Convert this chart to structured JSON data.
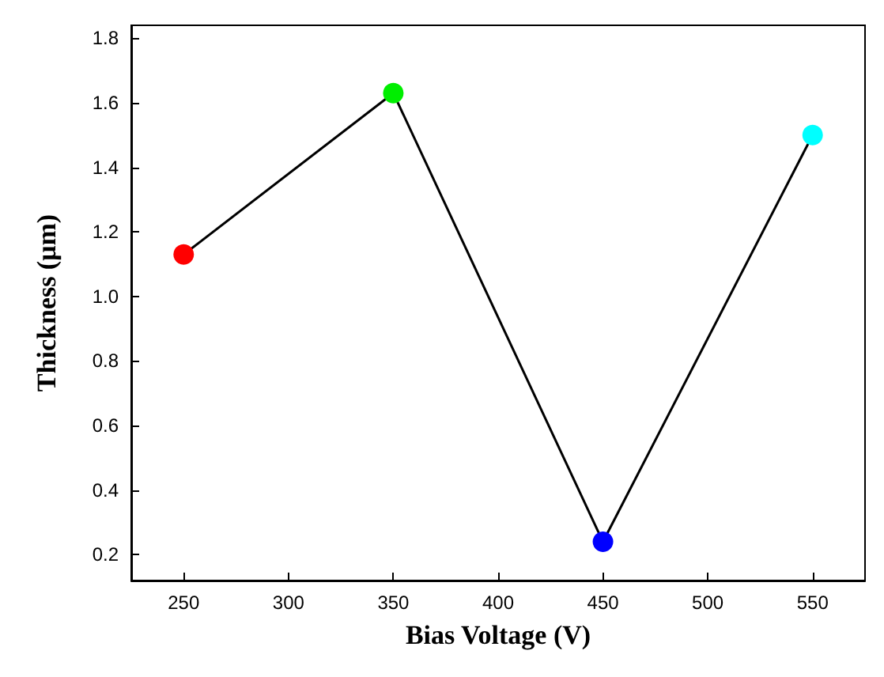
{
  "chart_data": {
    "type": "line",
    "xlabel": "Bias Voltage (V)",
    "ylabel": "Thickness (μm)",
    "x": [
      250,
      350,
      450,
      550
    ],
    "series": [
      {
        "color": "#000000",
        "colors": [
          "#ff0000",
          "#00ee00",
          "#0000ff",
          "#00ffff"
        ],
        "values": [
          1.13,
          1.63,
          0.24,
          1.5
        ]
      }
    ],
    "xlim": [
      225,
      575
    ],
    "xticks": [
      250,
      300,
      350,
      400,
      450,
      500,
      550
    ],
    "ylim": [
      0.12,
      1.84
    ],
    "yticks": [
      0.2,
      0.4,
      0.6,
      0.8,
      {
        "value": 1,
        "label": "1.0"
      },
      1.2,
      1.4,
      1.6,
      1.8
    ],
    "marker": "circle",
    "line_style": "solid",
    "grid": false
  }
}
